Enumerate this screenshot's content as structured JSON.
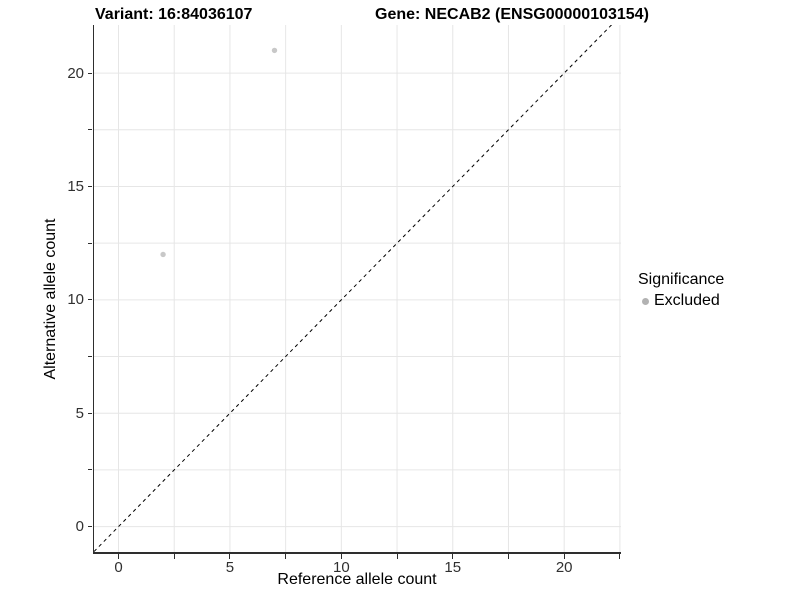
{
  "chart_data": {
    "type": "scatter",
    "title_variant": "Variant: 16:84036107",
    "title_gene": "Gene: NECAB2 (ENSG00000103154)",
    "xlabel": "Reference allele count",
    "ylabel": "Alternative allele count",
    "xlim": [
      -1.1,
      22.55
    ],
    "ylim": [
      -1.12,
      22.12
    ],
    "x_ticks": [
      0,
      2.5,
      5,
      7.5,
      10,
      12.5,
      15,
      17.5,
      20,
      22.5
    ],
    "y_ticks": [
      0,
      2.5,
      5,
      7.5,
      10,
      12.5,
      15,
      17.5,
      20
    ],
    "labeled_values": [
      0,
      5,
      10,
      15,
      20
    ],
    "grid_on": true,
    "grid_color": "#e6e6e6",
    "axis_color": "#2e2e2e",
    "tick_text_color": "#303030",
    "reference_line": {
      "type": "identity",
      "style": "dashed",
      "color": "#000000"
    },
    "series": [
      {
        "name": "Excluded",
        "color": "#c8c8c8",
        "points": [
          {
            "x": 7,
            "y": 21
          },
          {
            "x": 2,
            "y": 12
          }
        ]
      }
    ],
    "legend": {
      "position": "right",
      "title": "Significance",
      "items": [
        {
          "label": "Excluded",
          "marker_color": "#b2b2b2"
        }
      ]
    }
  }
}
